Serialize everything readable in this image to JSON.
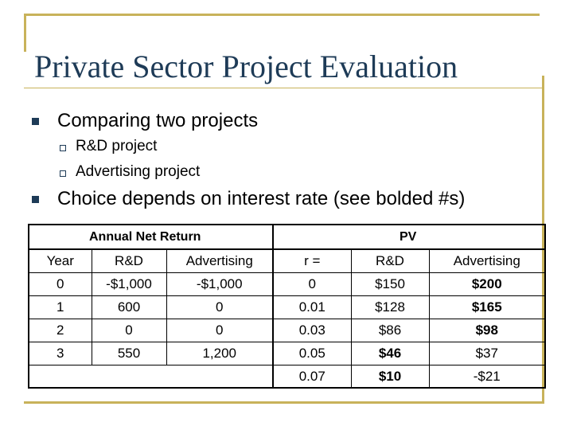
{
  "slide": {
    "title": "Private Sector Project Evaluation",
    "bullets": [
      {
        "text": "Comparing two projects",
        "sub": [
          "R&D project",
          "Advertising project"
        ]
      },
      {
        "text": "Choice depends on interest rate (see bolded #s)"
      }
    ]
  },
  "table": {
    "group_left": "Annual Net Return",
    "group_right": "PV",
    "headers": [
      "Year",
      "R&D",
      "Advertising",
      "r =",
      "R&D",
      "Advertising"
    ],
    "rows": [
      [
        "0",
        "-$1,000",
        "-$1,000",
        "0",
        "$150",
        "$200"
      ],
      [
        "1",
        "600",
        "0",
        "0.01",
        "$128",
        "$165"
      ],
      [
        "2",
        "0",
        "0",
        "0.03",
        "$86",
        "$98"
      ],
      [
        "3",
        "550",
        "1,200",
        "0.05",
        "$46",
        "$37"
      ],
      [
        "",
        "",
        "",
        "0.07",
        "$10",
        "-$21"
      ]
    ],
    "bold_cells": [
      [
        0,
        5
      ],
      [
        1,
        5
      ],
      [
        2,
        5
      ],
      [
        3,
        4
      ],
      [
        4,
        4
      ]
    ],
    "colors": {
      "frame": "#c8b25a",
      "title": "#1e3b57"
    }
  }
}
